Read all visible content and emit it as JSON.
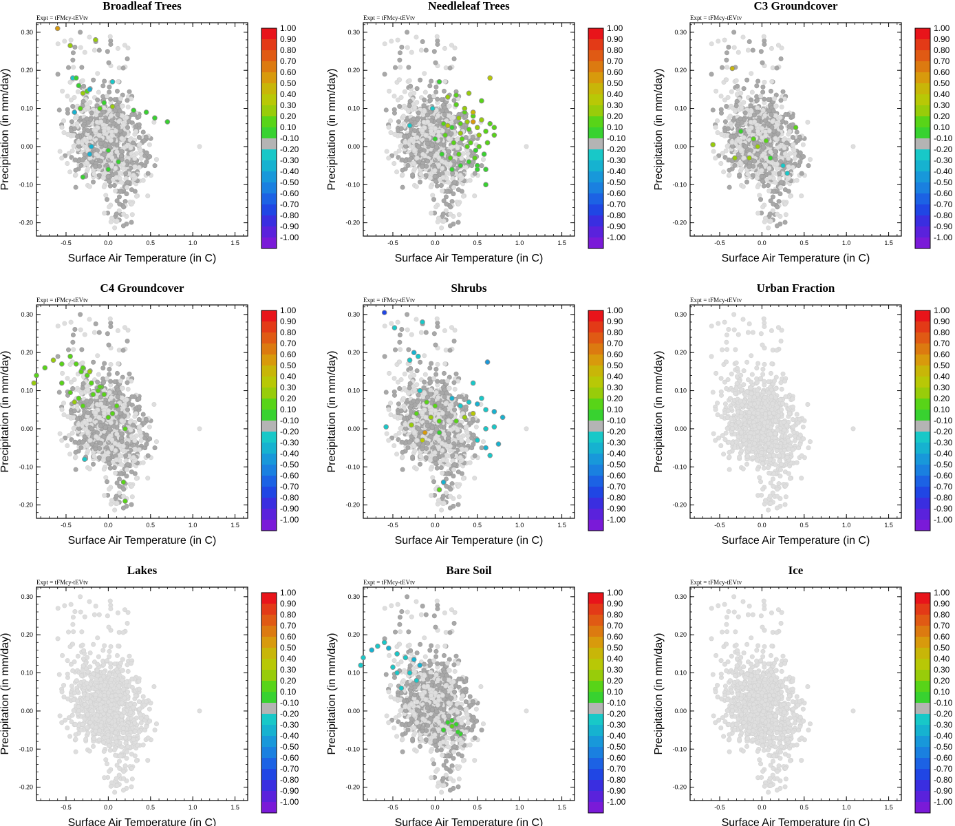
{
  "figure": {
    "expt_label": "Expt = tFMcy-tEVtv",
    "xlabel": "Surface Air Temperature (in C)",
    "ylabel": "Precipitation (in mm/day)",
    "xticks": [
      "-0.5",
      "0.0",
      "0.5",
      "1.0",
      "1.5"
    ],
    "xtick_values": [
      -0.5,
      0.0,
      0.5,
      1.0,
      1.5
    ],
    "yticks": [
      "0.30",
      "0.20",
      "0.10",
      "0.00",
      "-0.10",
      "-0.20"
    ],
    "ytick_values": [
      0.3,
      0.2,
      0.1,
      0.0,
      -0.1,
      -0.2
    ]
  },
  "colorbar": {
    "labels": [
      "1.00",
      "0.90",
      "0.80",
      "0.70",
      "0.60",
      "0.50",
      "0.40",
      "0.30",
      "0.20",
      "0.10",
      "-0.10",
      "-0.20",
      "-0.30",
      "-0.40",
      "-0.50",
      "-0.60",
      "-0.70",
      "-0.80",
      "-0.90",
      "-1.00"
    ],
    "colors": [
      "#e8141a",
      "#e33a17",
      "#e05a14",
      "#dc7a10",
      "#d89a0c",
      "#c8b608",
      "#b8c806",
      "#98cc0a",
      "#58d418",
      "#38d230",
      "#b4b4b4",
      "#18c8c8",
      "#16b2d0",
      "#1898da",
      "#1a80e0",
      "#1c62e4",
      "#2046e4",
      "#3a2ee0",
      "#5a22dc",
      "#7a1ad8"
    ]
  },
  "chart_data": [
    {
      "type": "scatter",
      "title": "Broadleaf Trees",
      "xlim": [
        -0.85,
        1.65
      ],
      "ylim": [
        -0.235,
        0.325
      ],
      "series": [
        {
          "name": "Broadleaf Trees (colored by correlation)",
          "x": [
            -0.6,
            -0.45,
            -0.15,
            -0.42,
            -0.38,
            -0.35,
            -0.3,
            -0.25,
            -0.22,
            -0.4,
            -0.33,
            -0.1,
            -0.05,
            0.05,
            0.3,
            0.45,
            0.55,
            0.7,
            -0.2,
            0.0,
            0.12,
            0.0,
            -0.3,
            -0.22,
            0.05
          ],
          "y": [
            0.31,
            0.265,
            0.28,
            0.18,
            0.18,
            0.16,
            0.14,
            0.145,
            0.15,
            0.09,
            0.1,
            0.1,
            0.115,
            0.105,
            0.095,
            0.09,
            0.075,
            0.065,
            0.0,
            -0.01,
            -0.04,
            -0.06,
            -0.08,
            -0.02,
            0.17
          ],
          "color_values": [
            0.6,
            0.3,
            0.3,
            -0.2,
            0.1,
            0.1,
            0.3,
            0.2,
            -0.3,
            -0.3,
            0.2,
            0.2,
            0.1,
            0.3,
            0.1,
            0.1,
            0.1,
            0.1,
            -0.3,
            0.1,
            0.1,
            0.1,
            0.1,
            -0.3,
            -0.2
          ]
        }
      ]
    },
    {
      "type": "scatter",
      "title": "Needleleaf Trees",
      "xlim": [
        -0.85,
        1.65
      ],
      "ylim": [
        -0.235,
        0.325
      ],
      "series": [
        {
          "name": "Needleleaf Trees (colored by correlation)",
          "x": [
            0.05,
            0.15,
            0.25,
            0.35,
            0.45,
            0.55,
            0.65,
            0.1,
            0.2,
            0.3,
            0.4,
            0.5,
            0.6,
            0.7,
            0.0,
            0.12,
            0.22,
            0.32,
            0.42,
            0.52,
            0.62,
            0.08,
            0.18,
            0.28,
            0.38,
            0.48,
            0.58,
            0.3,
            0.4,
            0.5,
            0.6,
            0.2,
            0.35,
            0.45,
            0.55,
            0.65,
            0.7,
            0.28,
            0.38,
            0.47,
            0.6,
            0.4,
            0.25,
            0.52,
            0.3,
            0.45,
            0.15,
            0.5,
            -0.3,
            -0.03
          ],
          "y": [
            0.17,
            0.13,
            0.11,
            0.09,
            0.08,
            0.07,
            0.18,
            0.06,
            0.05,
            0.06,
            0.045,
            0.05,
            0.04,
            0.03,
            0.02,
            0.03,
            0.01,
            0.02,
            0.01,
            0.0,
            0.01,
            -0.02,
            -0.03,
            -0.02,
            0.0,
            -0.01,
            -0.02,
            -0.05,
            -0.04,
            -0.05,
            -0.1,
            -0.06,
            0.1,
            0.09,
            0.12,
            0.06,
            0.05,
            0.075,
            0.065,
            -0.03,
            -0.06,
            0.14,
            0.135,
            0.03,
            0.035,
            0.065,
            0.055,
            -0.06,
            0.055,
            0.1
          ],
          "color_values": [
            0.1,
            0.3,
            0.2,
            0.2,
            0.2,
            0.3,
            0.4,
            0.2,
            0.1,
            0.2,
            0.2,
            0.3,
            0.2,
            0.2,
            0.1,
            0.2,
            0.2,
            0.2,
            0.2,
            0.2,
            0.2,
            0.1,
            0.2,
            0.2,
            0.2,
            0.1,
            0.1,
            0.1,
            0.1,
            0.1,
            0.1,
            0.1,
            0.3,
            0.5,
            0.2,
            0.2,
            0.2,
            0.3,
            0.3,
            0.2,
            0.1,
            0.3,
            0.2,
            0.3,
            0.3,
            0.6,
            0.4,
            0.1,
            -0.2,
            -0.2
          ]
        }
      ]
    },
    {
      "type": "scatter",
      "title": "C3 Groundcover",
      "xlim": [
        -0.85,
        1.65
      ],
      "ylim": [
        -0.235,
        0.325
      ],
      "series": [
        {
          "name": "C3 Groundcover (colored by correlation)",
          "x": [
            -0.58,
            -0.35,
            -0.32,
            -0.25,
            -0.1,
            -0.05,
            0.05,
            0.1,
            0.4,
            -0.15,
            0.25,
            0.3
          ],
          "y": [
            0.005,
            0.205,
            -0.03,
            0.04,
            0.02,
            0.0,
            0.015,
            -0.03,
            0.05,
            -0.03,
            -0.05,
            -0.07
          ],
          "color_values": [
            0.3,
            0.5,
            0.3,
            0.1,
            0.2,
            0.3,
            0.2,
            0.1,
            0.2,
            0.3,
            -0.2,
            -0.2
          ]
        }
      ]
    },
    {
      "type": "scatter",
      "title": "C4 Groundcover",
      "xlim": [
        -0.85,
        1.65
      ],
      "ylim": [
        -0.235,
        0.325
      ],
      "series": [
        {
          "name": "C4 Groundcover (colored by correlation)",
          "x": [
            -0.88,
            -0.85,
            -0.75,
            -0.65,
            -0.55,
            -0.45,
            -0.38,
            -0.32,
            -0.3,
            -0.25,
            -0.2,
            -0.18,
            -0.12,
            -0.08,
            -0.05,
            0.05,
            0.1,
            0.2,
            -0.45,
            -0.35,
            -0.4,
            -0.55,
            0.18,
            0.2,
            -0.28,
            -0.22,
            -0.1,
            0.0,
            -0.3
          ],
          "y": [
            0.12,
            0.14,
            0.16,
            0.18,
            0.17,
            0.19,
            0.17,
            0.15,
            0.16,
            0.14,
            0.12,
            0.09,
            0.1,
            0.11,
            0.09,
            0.04,
            0.06,
            0.0,
            0.095,
            0.08,
            0.07,
            0.12,
            -0.14,
            -0.19,
            -0.08,
            0.15,
            0.11,
            0.03,
            0.06
          ],
          "color_values": [
            0.3,
            0.2,
            0.2,
            0.3,
            0.2,
            0.2,
            0.2,
            0.2,
            0.2,
            0.2,
            0.2,
            0.2,
            0.2,
            0.2,
            0.2,
            0.2,
            0.2,
            0.2,
            0.2,
            0.2,
            0.3,
            0.2,
            0.2,
            0.2,
            -0.2,
            0.3,
            0.2,
            0.2,
            0.2
          ]
        }
      ]
    },
    {
      "type": "scatter",
      "title": "Shrubs",
      "xlim": [
        -0.85,
        1.65
      ],
      "ylim": [
        -0.235,
        0.325
      ],
      "series": [
        {
          "name": "Shrubs (colored by correlation)",
          "x": [
            -0.6,
            -0.15,
            -0.48,
            -0.3,
            -0.25,
            -0.2,
            -0.18,
            -0.1,
            0.0,
            -0.22,
            -0.05,
            0.05,
            -0.28,
            -0.12,
            -0.15,
            0.2,
            0.3,
            0.4,
            0.5,
            0.6,
            0.7,
            0.55,
            0.45,
            0.35,
            0.25,
            0.6,
            0.7,
            0.5,
            0.6,
            0.75,
            0.65,
            0.8,
            0.1,
            0.05,
            -0.58,
            0.62,
            0.45,
            0.05
          ],
          "y": [
            0.305,
            0.28,
            0.265,
            0.18,
            0.2,
            0.19,
            0.1,
            0.07,
            0.06,
            0.04,
            0.03,
            0.02,
            0.01,
            -0.01,
            -0.03,
            0.08,
            0.06,
            0.07,
            0.065,
            0.05,
            0.045,
            0.08,
            0.04,
            0.03,
            0.02,
            0.0,
            0.005,
            -0.03,
            -0.05,
            -0.04,
            -0.07,
            0.03,
            -0.14,
            -0.16,
            0.005,
            0.175,
            0.12,
            -0.01
          ],
          "color_values": [
            -0.7,
            -0.2,
            -0.2,
            -0.2,
            -0.3,
            -0.2,
            -0.2,
            0.2,
            0.2,
            0.2,
            0.3,
            0.2,
            0.3,
            0.6,
            0.4,
            -0.3,
            -0.2,
            -0.2,
            -0.3,
            -0.2,
            -0.3,
            -0.2,
            0.4,
            0.3,
            0.2,
            -0.2,
            -0.2,
            -0.2,
            -0.3,
            -0.3,
            -0.2,
            -0.3,
            -0.3,
            0.2,
            -0.2,
            -0.4,
            -0.2,
            0.1
          ]
        }
      ]
    },
    {
      "type": "scatter",
      "title": "Urban Fraction",
      "xlim": [
        -0.85,
        1.65
      ],
      "ylim": [
        -0.235,
        0.325
      ],
      "series": []
    },
    {
      "type": "scatter",
      "title": "Lakes",
      "xlim": [
        -0.85,
        1.65
      ],
      "ylim": [
        -0.235,
        0.325
      ],
      "series": []
    },
    {
      "type": "scatter",
      "title": "Bare Soil",
      "xlim": [
        -0.85,
        1.65
      ],
      "ylim": [
        -0.235,
        0.325
      ],
      "series": [
        {
          "name": "Bare Soil (colored by correlation)",
          "x": [
            -0.88,
            -0.85,
            -0.75,
            -0.68,
            -0.6,
            -0.55,
            -0.45,
            -0.35,
            -0.3,
            -0.22,
            -0.18,
            -0.25,
            -0.5,
            -0.45,
            -0.4,
            0.15,
            0.2,
            0.25,
            0.3,
            0.1,
            0.2,
            0.27
          ],
          "y": [
            0.12,
            0.14,
            0.16,
            0.17,
            0.18,
            0.165,
            0.15,
            0.14,
            0.1,
            0.08,
            0.12,
            0.135,
            0.115,
            0.1,
            0.06,
            -0.03,
            -0.025,
            -0.035,
            -0.06,
            -0.05,
            -0.04,
            -0.055
          ],
          "color_values": [
            -0.2,
            -0.2,
            -0.3,
            -0.2,
            -0.2,
            -0.3,
            -0.2,
            -0.2,
            -0.2,
            -0.2,
            -0.3,
            -0.3,
            -0.2,
            -0.2,
            -0.2,
            0.1,
            0.1,
            0.1,
            0.1,
            0.1,
            0.2,
            0.1
          ]
        }
      ]
    },
    {
      "type": "scatter",
      "title": "Ice",
      "xlim": [
        -0.85,
        1.65
      ],
      "ylim": [
        -0.235,
        0.325
      ],
      "series": []
    }
  ]
}
